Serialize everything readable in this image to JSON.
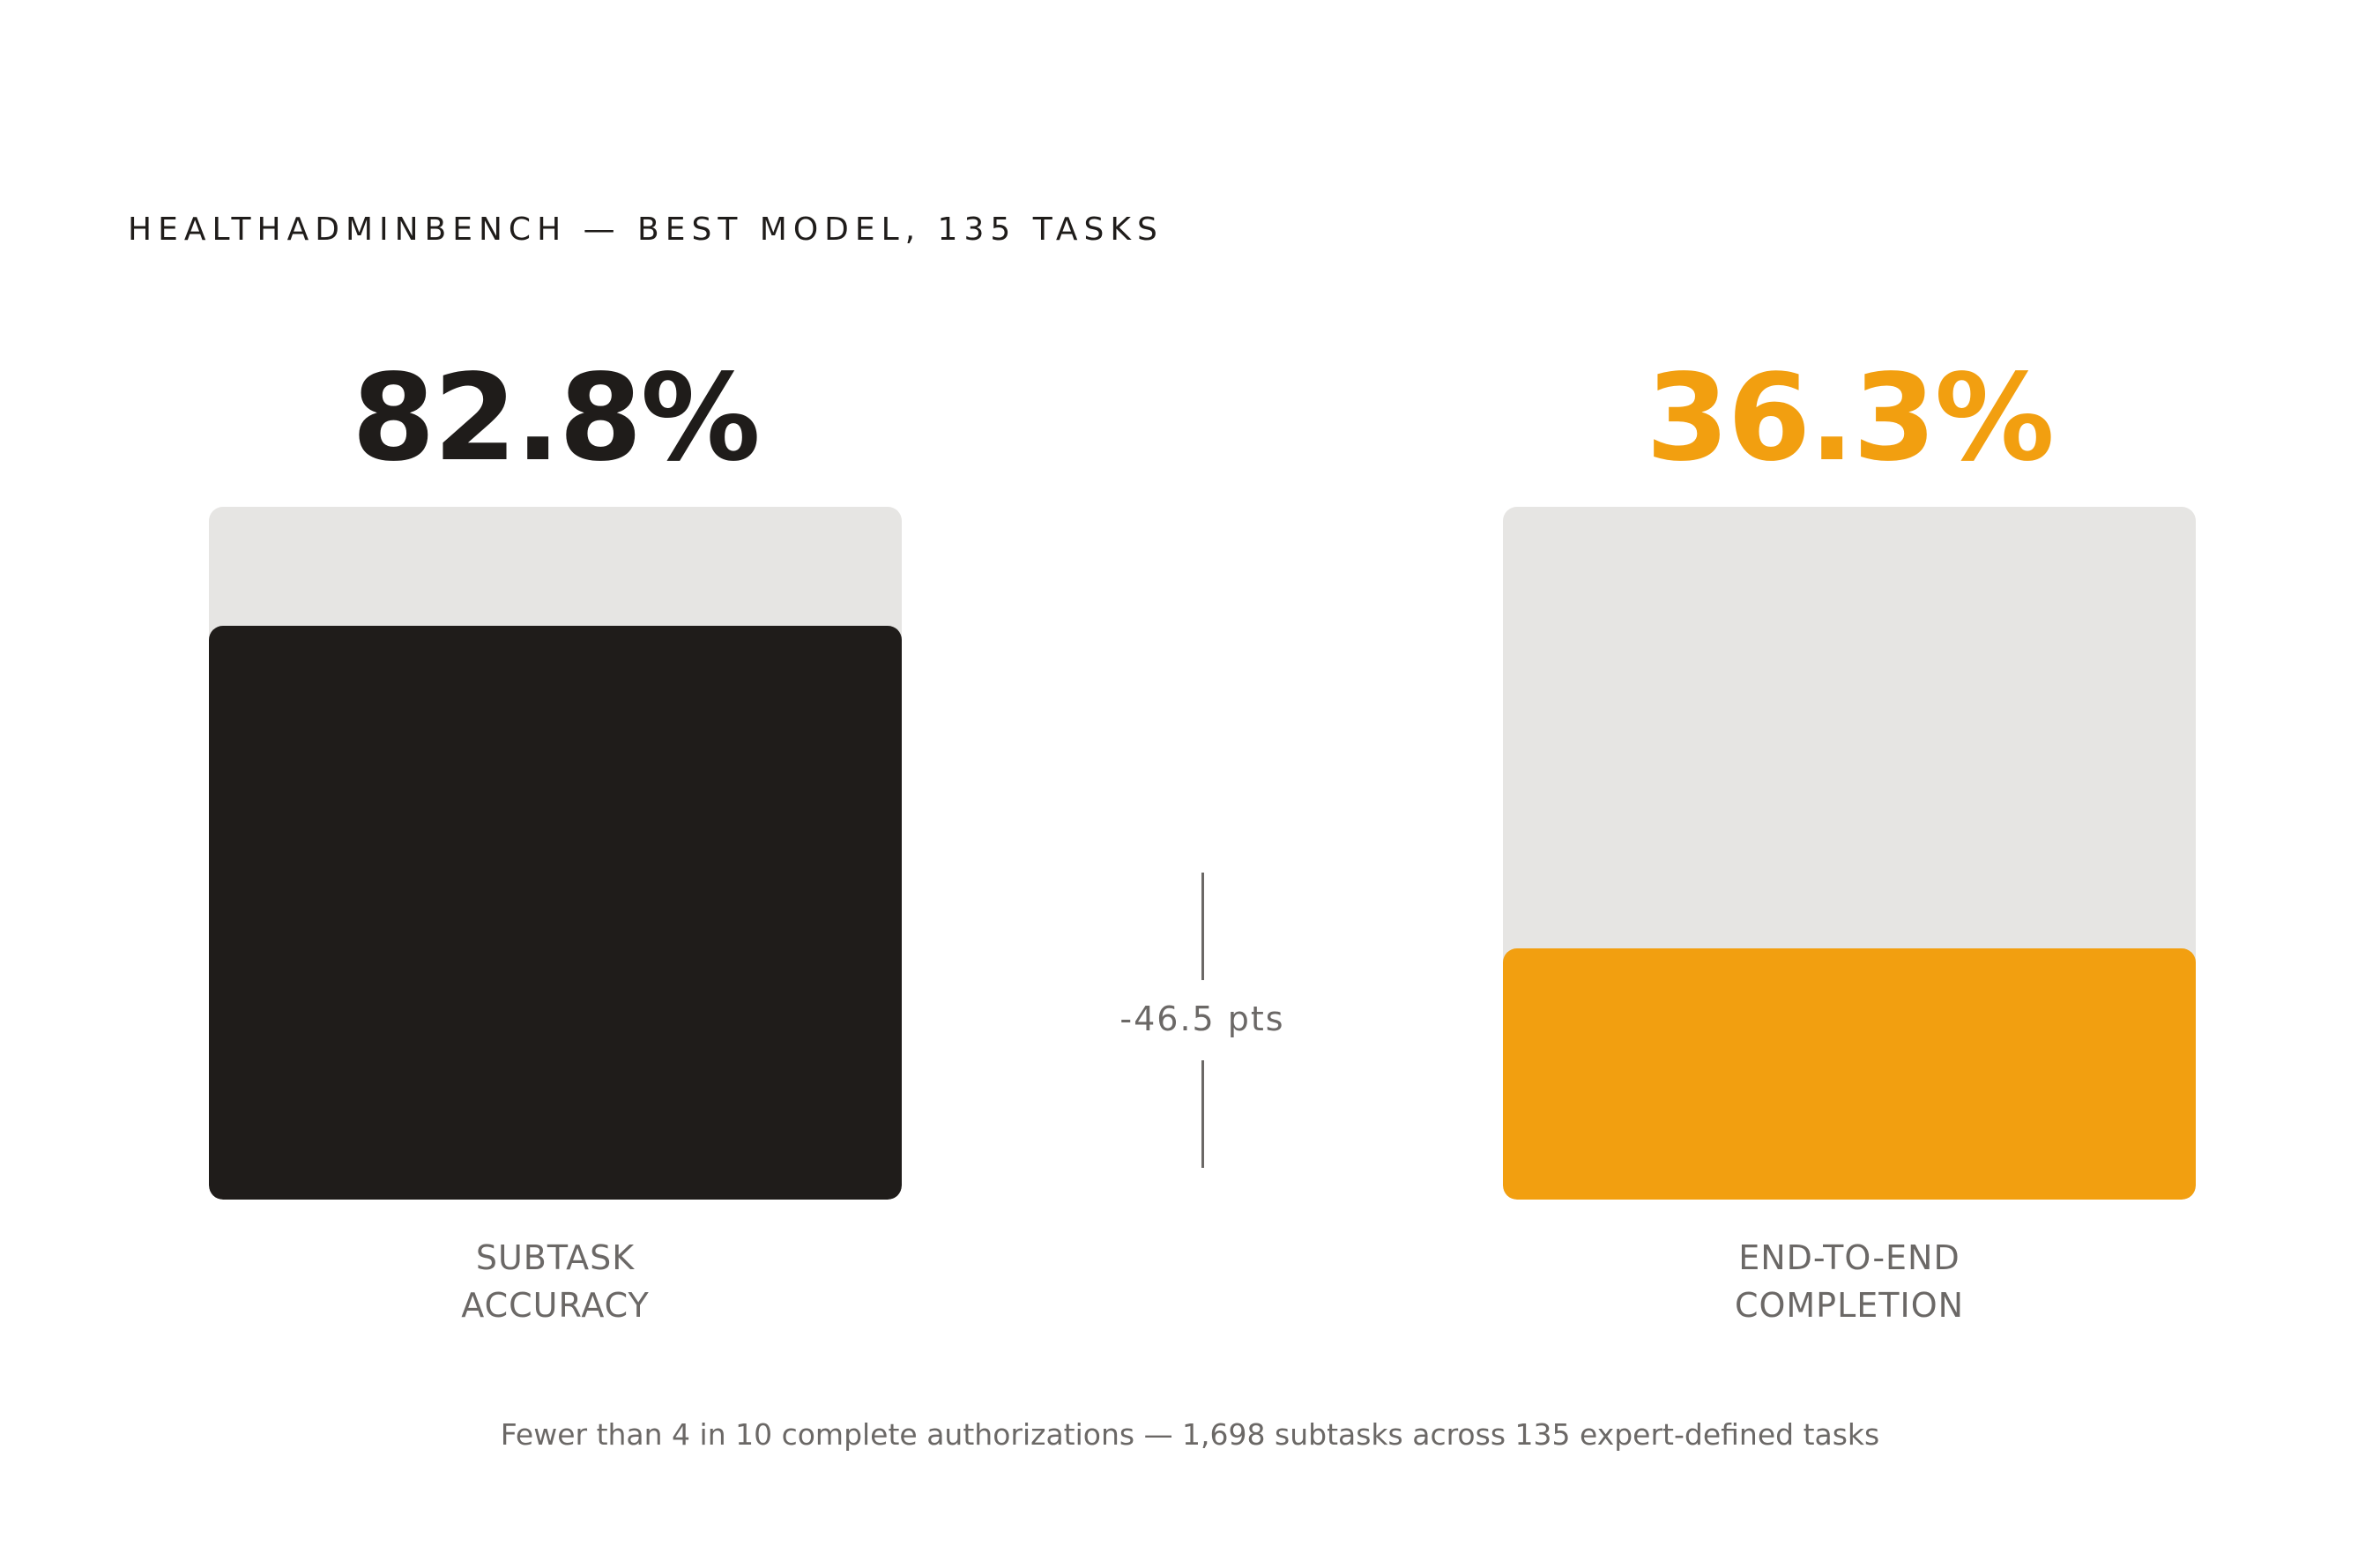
{
  "title": "HEALTHADMINBENCH — BEST MODEL, 135 TASKS",
  "gap_label": "-46.5 pts",
  "footnote": "Fewer than 4 in 10 complete authorizations — 1,698 subtasks across 135 expert-defined tasks",
  "colors": {
    "subtask": "#1f1c1a",
    "end_to_end": "#f29f10",
    "track": "#e6e5e3",
    "muted_text": "#6b6866"
  },
  "chart_data": {
    "type": "bar",
    "title": "HEALTHADMINBENCH — BEST MODEL, 135 TASKS",
    "ylim": [
      0,
      100
    ],
    "bars": [
      {
        "value": 82.8,
        "value_label": "82.8%",
        "label_lines": [
          "SUBTASK",
          "ACCURACY"
        ],
        "color": "#1f1c1a"
      },
      {
        "value": 36.3,
        "value_label": "36.3%",
        "label_lines": [
          "END-TO-END",
          "COMPLETION"
        ],
        "color": "#f29f10"
      }
    ],
    "difference": "-46.5 pts"
  }
}
